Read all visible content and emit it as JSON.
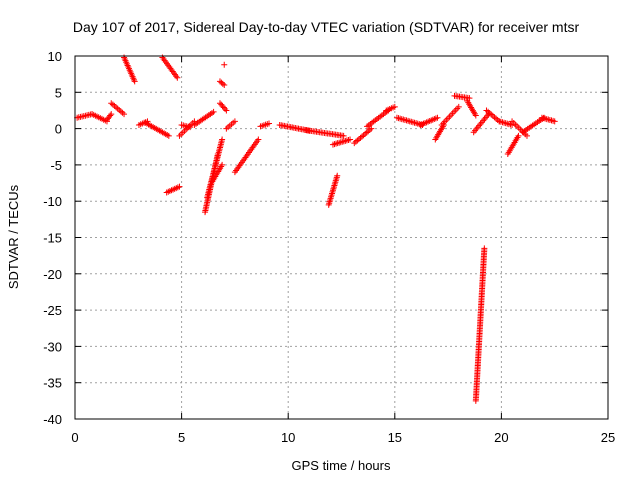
{
  "chart_data": {
    "type": "scatter",
    "title": "Day 107 of 2017, Sidereal Day-to-day VTEC variation (SDTVAR) for receiver mtsr",
    "xlabel": "GPS time / hours",
    "ylabel": "SDTVAR / TECUs",
    "xlim": [
      0,
      25
    ],
    "ylim": [
      -40,
      10
    ],
    "xticks": [
      0,
      5,
      10,
      15,
      20,
      25
    ],
    "yticks": [
      -40,
      -35,
      -30,
      -25,
      -20,
      -15,
      -10,
      -5,
      0,
      5,
      10
    ],
    "grid": true,
    "marker": "plus",
    "marker_color": "#ff0000",
    "segments": [
      {
        "x0": 0.1,
        "x1": 0.8,
        "y0": 1.5,
        "y1": 2.0
      },
      {
        "x0": 0.8,
        "x1": 1.5,
        "y0": 2.0,
        "y1": 1.0
      },
      {
        "x0": 1.5,
        "x1": 1.7,
        "y0": 1.2,
        "y1": 2.0
      },
      {
        "x0": 1.7,
        "x1": 2.3,
        "y0": 3.5,
        "y1": 2.0
      },
      {
        "x0": 2.3,
        "x1": 2.8,
        "y0": 9.8,
        "y1": 6.5
      },
      {
        "x0": 3.0,
        "x1": 3.4,
        "y0": 0.5,
        "y1": 1.0
      },
      {
        "x0": 3.3,
        "x1": 4.4,
        "y0": 0.8,
        "y1": -1.0
      },
      {
        "x0": 4.1,
        "x1": 4.8,
        "y0": 9.8,
        "y1": 7.0
      },
      {
        "x0": 4.3,
        "x1": 4.9,
        "y0": -8.8,
        "y1": -8.0
      },
      {
        "x0": 4.9,
        "x1": 5.6,
        "y0": -1.0,
        "y1": 1.0
      },
      {
        "x0": 5.0,
        "x1": 5.4,
        "y0": 0.5,
        "y1": 0.2
      },
      {
        "x0": 5.6,
        "x1": 6.5,
        "y0": 0.5,
        "y1": 2.3
      },
      {
        "x0": 6.1,
        "x1": 6.7,
        "y0": -11.5,
        "y1": -3.5
      },
      {
        "x0": 6.2,
        "x1": 6.9,
        "y0": -9.5,
        "y1": -1.5
      },
      {
        "x0": 6.4,
        "x1": 6.9,
        "y0": -7.5,
        "y1": -5.0
      },
      {
        "x0": 6.8,
        "x1": 7.0,
        "y0": 6.5,
        "y1": 6.0
      },
      {
        "x0": 6.8,
        "x1": 7.1,
        "y0": 3.5,
        "y1": 2.5
      },
      {
        "x0": 7.1,
        "x1": 7.5,
        "y0": 0.0,
        "y1": 1.0
      },
      {
        "x0": 7.5,
        "x1": 8.6,
        "y0": -6.0,
        "y1": -1.5
      },
      {
        "x0": 8.7,
        "x1": 9.1,
        "y0": 0.3,
        "y1": 0.7
      },
      {
        "x0": 9.6,
        "x1": 11.0,
        "y0": 0.5,
        "y1": -0.3
      },
      {
        "x0": 10.8,
        "x1": 12.6,
        "y0": -0.2,
        "y1": -1.0
      },
      {
        "x0": 11.9,
        "x1": 12.3,
        "y0": -10.5,
        "y1": -6.5
      },
      {
        "x0": 12.1,
        "x1": 12.9,
        "y0": -2.2,
        "y1": -1.5
      },
      {
        "x0": 13.1,
        "x1": 13.9,
        "y0": -2.0,
        "y1": 0.0
      },
      {
        "x0": 13.7,
        "x1": 14.7,
        "y0": 0.3,
        "y1": 2.5
      },
      {
        "x0": 14.6,
        "x1": 15.0,
        "y0": 2.5,
        "y1": 3.0
      },
      {
        "x0": 15.1,
        "x1": 16.3,
        "y0": 1.5,
        "y1": 0.5
      },
      {
        "x0": 16.2,
        "x1": 17.0,
        "y0": 0.5,
        "y1": 1.5
      },
      {
        "x0": 16.9,
        "x1": 17.3,
        "y0": -1.5,
        "y1": 0.5
      },
      {
        "x0": 17.2,
        "x1": 18.0,
        "y0": 0.5,
        "y1": 3.0
      },
      {
        "x0": 17.8,
        "x1": 18.5,
        "y0": 4.5,
        "y1": 4.2
      },
      {
        "x0": 18.4,
        "x1": 18.8,
        "y0": 3.8,
        "y1": 1.8
      },
      {
        "x0": 18.7,
        "x1": 19.4,
        "y0": -0.5,
        "y1": 2.0
      },
      {
        "x0": 18.8,
        "x1": 19.2,
        "y0": -37.5,
        "y1": -16.5
      },
      {
        "x0": 19.3,
        "x1": 19.9,
        "y0": 2.5,
        "y1": 1.0
      },
      {
        "x0": 19.9,
        "x1": 20.5,
        "y0": 1.0,
        "y1": 0.5
      },
      {
        "x0": 20.3,
        "x1": 20.8,
        "y0": -3.5,
        "y1": -1.0
      },
      {
        "x0": 20.5,
        "x1": 21.2,
        "y0": 1.0,
        "y1": -1.0
      },
      {
        "x0": 21.0,
        "x1": 22.0,
        "y0": -0.5,
        "y1": 1.5
      },
      {
        "x0": 21.9,
        "x1": 22.5,
        "y0": 1.5,
        "y1": 1.0
      }
    ],
    "points": [
      {
        "x": 7.0,
        "y": 8.8
      }
    ]
  }
}
